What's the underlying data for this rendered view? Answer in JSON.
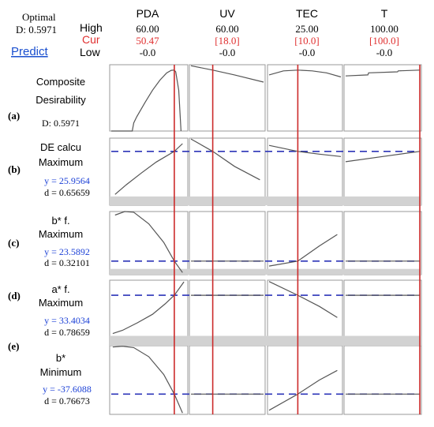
{
  "header": {
    "optimal_label": "Optimal",
    "d_label": "D: 0.5971",
    "predict_label": "Predict",
    "row_labels": [
      "High",
      "Cur",
      "Low"
    ]
  },
  "factors": [
    {
      "name": "PDA",
      "high": "60.00",
      "cur": "50.47",
      "low": "-0.0",
      "cur_fraction": 0.841
    },
    {
      "name": "UV",
      "high": "60.00",
      "cur": "[18.0]",
      "low": "-0.0",
      "cur_fraction": 0.3
    },
    {
      "name": "TEC",
      "high": "25.00",
      "cur": "[10.0]",
      "low": "-0.0",
      "cur_fraction": 0.4
    },
    {
      "name": "T",
      "high": "100.00",
      "cur": "[100.0]",
      "low": "-0.0",
      "cur_fraction": 1.0
    }
  ],
  "panel_letters": [
    "(a)",
    "(b)",
    "(c)",
    "(d)",
    "(e)"
  ],
  "responses": [
    {
      "id": "a",
      "title1": "Composite",
      "title2": "Desirability",
      "stat1": "D: 0.5971",
      "stat2": ""
    },
    {
      "id": "b",
      "title1": "DE calcu",
      "title2": "Maximum",
      "stat1": "y = 25.9564",
      "stat2": "d = 0.65659"
    },
    {
      "id": "c",
      "title1": "b* f.",
      "title2": "Maximum",
      "stat1": "y = 23.5892",
      "stat2": "d = 0.32101"
    },
    {
      "id": "d",
      "title1": "a* f.",
      "title2": "Maximum",
      "stat1": "y = 33.4034",
      "stat2": "d = 0.78659"
    },
    {
      "id": "e",
      "title1": "b*",
      "title2": "Minimum",
      "stat1": "y = -37.6088",
      "stat2": "d = 0.76673"
    }
  ],
  "colors": {
    "cur": "#e03030",
    "predict": "#1a4fcf",
    "stat": "#1a3fd6",
    "vline": "#cc2a2a",
    "hline": "#2c34b8",
    "curve": "#555555",
    "band": "#d2d2d2",
    "frame": "#9a9a9a"
  },
  "chart_data": {
    "type": "line",
    "x_factors": [
      "PDA",
      "UV",
      "TEC",
      "T"
    ],
    "x_ranges": [
      [
        0,
        60
      ],
      [
        0,
        60
      ],
      [
        0,
        25
      ],
      [
        0,
        100
      ]
    ],
    "current": [
      50.47,
      18.0,
      10.0,
      100.0
    ],
    "series": [
      {
        "id": "a",
        "current_value": 0.5971,
        "ylim": [
          0,
          0.65
        ],
        "band": null,
        "curves": [
          [
            [
              0,
              0
            ],
            [
              0.13,
              0
            ],
            [
              0.28,
              0
            ],
            [
              0.3,
              0.08
            ],
            [
              0.34,
              0.14
            ],
            [
              0.45,
              0.28
            ],
            [
              0.55,
              0.4
            ],
            [
              0.65,
              0.5
            ],
            [
              0.74,
              0.57
            ],
            [
              0.8,
              0.595
            ],
            [
              0.84,
              0.597
            ],
            [
              0.86,
              0.58
            ],
            [
              0.9,
              0.4
            ],
            [
              0.93,
              0.0
            ]
          ],
          [
            [
              0.0,
              0.64
            ],
            [
              0.3,
              0.597
            ],
            [
              0.6,
              0.55
            ],
            [
              1.0,
              0.48
            ]
          ],
          [
            [
              0.0,
              0.55
            ],
            [
              0.2,
              0.59
            ],
            [
              0.4,
              0.597
            ],
            [
              0.6,
              0.59
            ],
            [
              0.8,
              0.57
            ],
            [
              1.0,
              0.53
            ]
          ],
          [
            [
              0.0,
              0.54
            ],
            [
              0.3,
              0.55
            ],
            [
              0.31,
              0.57
            ],
            [
              0.7,
              0.58
            ],
            [
              0.71,
              0.59
            ],
            [
              1.0,
              0.597
            ]
          ]
        ]
      },
      {
        "id": "b",
        "current_value": 25.9564,
        "ylim": [
          7.5,
          30.5
        ],
        "band": [
          7.5,
          10.5
        ],
        "curves": [
          [
            [
              0.05,
              11.2
            ],
            [
              0.2,
              14.5
            ],
            [
              0.4,
              18.5
            ],
            [
              0.6,
              22.3
            ],
            [
              0.841,
              25.9564
            ],
            [
              0.95,
              28.6
            ]
          ],
          [
            [
              0.0,
              30.2
            ],
            [
              0.3,
              25.9564
            ],
            [
              0.6,
              20.8
            ],
            [
              0.95,
              16.2
            ]
          ],
          [
            [
              0.0,
              28.0
            ],
            [
              0.4,
              25.9564
            ],
            [
              0.7,
              25.0
            ],
            [
              1.0,
              24.2
            ]
          ],
          [
            [
              0.0,
              22.4
            ],
            [
              0.5,
              24.2
            ],
            [
              1.0,
              25.9564
            ]
          ]
        ]
      },
      {
        "id": "c",
        "current_value": 23.5892,
        "ylim": [
          21.7,
          30.5
        ],
        "band": [
          21.7,
          22.5
        ],
        "curves": [
          [
            [
              0.05,
              30.0
            ],
            [
              0.18,
              30.5
            ],
            [
              0.3,
              30.4
            ],
            [
              0.5,
              28.8
            ],
            [
              0.7,
              26.2
            ],
            [
              0.841,
              23.5892
            ],
            [
              0.95,
              22.0
            ]
          ],
          [
            [
              0.0,
              23.5892
            ],
            [
              1.0,
              23.5892
            ]
          ],
          [
            [
              0.0,
              22.9
            ],
            [
              0.4,
              23.5892
            ],
            [
              0.7,
              25.7
            ],
            [
              0.95,
              27.3
            ]
          ],
          [
            [
              0.0,
              23.5892
            ],
            [
              1.0,
              23.5892
            ]
          ]
        ]
      },
      {
        "id": "d",
        "current_value": 33.4034,
        "ylim": [
          18,
          38
        ],
        "band": [
          18,
          21
        ],
        "curves": [
          [
            [
              0.02,
              21.7
            ],
            [
              0.15,
              22.7
            ],
            [
              0.35,
              25.0
            ],
            [
              0.55,
              27.6
            ],
            [
              0.72,
              30.8
            ],
            [
              0.841,
              33.4034
            ],
            [
              0.97,
              37.5
            ]
          ],
          [
            [
              0.0,
              33.4034
            ],
            [
              1.0,
              33.4034
            ]
          ],
          [
            [
              0.0,
              37.6
            ],
            [
              0.4,
              33.4034
            ],
            [
              0.7,
              30.0
            ],
            [
              0.95,
              26.6
            ]
          ],
          [
            [
              0.0,
              33.4034
            ],
            [
              1.0,
              33.4034
            ]
          ]
        ]
      },
      {
        "id": "e",
        "current_value": -37.6088,
        "ylim": [
          -45,
          -20
        ],
        "band": null,
        "curves": [
          [
            [
              0.02,
              -20.5
            ],
            [
              0.15,
              -20.2
            ],
            [
              0.3,
              -20.7
            ],
            [
              0.5,
              -24.0
            ],
            [
              0.7,
              -30.5
            ],
            [
              0.841,
              -37.6088
            ],
            [
              0.95,
              -44.5
            ]
          ],
          [
            [
              0.0,
              -37.6088
            ],
            [
              1.0,
              -37.6088
            ]
          ],
          [
            [
              0.0,
              -43.5
            ],
            [
              0.4,
              -37.6088
            ],
            [
              0.7,
              -32.5
            ],
            [
              0.95,
              -29.0
            ]
          ],
          [
            [
              0.0,
              -37.6088
            ],
            [
              1.0,
              -37.6088
            ]
          ]
        ]
      }
    ]
  }
}
